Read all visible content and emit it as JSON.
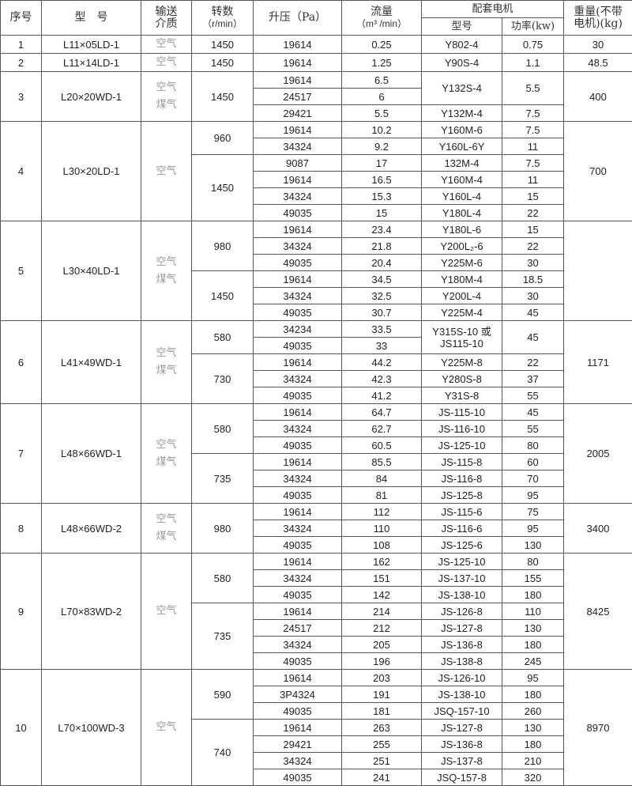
{
  "header": {
    "no": "序号",
    "model": "型　号",
    "medium_1": "输送",
    "medium_2": "介质",
    "speed_1": "转数",
    "speed_2": "（r/min）",
    "pressure": "升压（Pa）",
    "flow_1": "流量",
    "flow_2": "（m³ /min）",
    "motor_group": "配套电机",
    "motor_model": "型号",
    "motor_power": "功率(kw)",
    "weight_1": "重量(不带",
    "weight_2": "电机)(kg)"
  },
  "groups": [
    {
      "no": "1",
      "model": "L11×05LD-1",
      "medium": [
        "空气"
      ],
      "weight": "30",
      "speeds": [
        {
          "rpm": "1450",
          "rows": [
            {
              "pressure": "19614",
              "flow": "0.25",
              "motor": "Y802-4",
              "power": "0.75"
            }
          ]
        }
      ]
    },
    {
      "no": "2",
      "model": "L11×14LD-1",
      "medium": [
        "空气"
      ],
      "weight": "48.5",
      "speeds": [
        {
          "rpm": "1450",
          "rows": [
            {
              "pressure": "19614",
              "flow": "1.25",
              "motor": "Y90S-4",
              "power": "1.1"
            }
          ]
        }
      ]
    },
    {
      "no": "3",
      "model": "L20×20WD-1",
      "medium": [
        "空气",
        "煤气"
      ],
      "weight": "400",
      "speeds": [
        {
          "rpm": "1450",
          "rows": [
            {
              "pressure": "19614",
              "flow": "6.5",
              "motor": "Y132S-4",
              "power": "5.5",
              "merged_rows": 2
            },
            {
              "pressure": "24517",
              "flow": "6"
            },
            {
              "pressure": "29421",
              "flow": "5.5",
              "motor": "Y132M-4",
              "power": "7.5"
            }
          ]
        }
      ]
    },
    {
      "no": "4",
      "model": "L30×20LD-1",
      "medium": [
        "空气"
      ],
      "weight": "700",
      "speeds": [
        {
          "rpm": "960",
          "rows": [
            {
              "pressure": "19614",
              "flow": "10.2",
              "motor": "Y160M-6",
              "power": "7.5"
            },
            {
              "pressure": "34324",
              "flow": "9.2",
              "motor": "Y160L-6Y",
              "power": "11"
            }
          ]
        },
        {
          "rpm": "1450",
          "rows": [
            {
              "pressure": "9087",
              "flow": "17",
              "motor": "132M-4",
              "power": "7.5"
            },
            {
              "pressure": "19614",
              "flow": "16.5",
              "motor": "Y160M-4",
              "power": "11"
            },
            {
              "pressure": "34324",
              "flow": "15.3",
              "motor": "Y160L-4",
              "power": "15"
            },
            {
              "pressure": "49035",
              "flow": "15",
              "motor": "Y180L-4",
              "power": "22"
            }
          ]
        }
      ]
    },
    {
      "no": "5",
      "model": "L30×40LD-1",
      "medium": [
        "空气",
        "煤气"
      ],
      "weight": "",
      "speeds": [
        {
          "rpm": "980",
          "rows": [
            {
              "pressure": "19614",
              "flow": "23.4",
              "motor": "Y180L-6",
              "power": "15"
            },
            {
              "pressure": "34324",
              "flow": "21.8",
              "motor": "Y200L₂-6",
              "power": "22"
            },
            {
              "pressure": "49035",
              "flow": "20.4",
              "motor": "Y225M-6",
              "power": "30"
            }
          ]
        },
        {
          "rpm": "1450",
          "rows": [
            {
              "pressure": "19614",
              "flow": "34.5",
              "motor": "Y180M-4",
              "power": "18.5"
            },
            {
              "pressure": "34324",
              "flow": "32.5",
              "motor": "Y200L-4",
              "power": "30"
            },
            {
              "pressure": "49035",
              "flow": "30.7",
              "motor": "Y225M-4",
              "power": "45"
            }
          ]
        }
      ]
    },
    {
      "no": "6",
      "model": "L41×49WD-1",
      "medium": [
        "空气",
        "煤气"
      ],
      "weight": "1171",
      "speeds": [
        {
          "rpm": "580",
          "rows": [
            {
              "pressure": "34234",
              "flow": "33.5",
              "motor": "Y315S-10 或 JS115-10",
              "power": "45",
              "merged_rows": 2
            },
            {
              "pressure": "49035",
              "flow": "33"
            }
          ]
        },
        {
          "rpm": "730",
          "rows": [
            {
              "pressure": "19614",
              "flow": "44.2",
              "motor": "Y225M-8",
              "power": "22"
            },
            {
              "pressure": "34324",
              "flow": "42.3",
              "motor": "Y280S-8",
              "power": "37"
            },
            {
              "pressure": "49035",
              "flow": "41.2",
              "motor": "Y31S-8",
              "power": "55"
            }
          ]
        }
      ]
    },
    {
      "no": "7",
      "model": "L48×66WD-1",
      "medium": [
        "空气",
        "煤气"
      ],
      "weight": "2005",
      "speeds": [
        {
          "rpm": "580",
          "rows": [
            {
              "pressure": "19614",
              "flow": "64.7",
              "motor": "JS-115-10",
              "power": "45"
            },
            {
              "pressure": "34324",
              "flow": "62.7",
              "motor": "JS-116-10",
              "power": "55"
            },
            {
              "pressure": "49035",
              "flow": "60.5",
              "motor": "JS-125-10",
              "power": "80"
            }
          ]
        },
        {
          "rpm": "735",
          "rows": [
            {
              "pressure": "19614",
              "flow": "85.5",
              "motor": "JS-115-8",
              "power": "60"
            },
            {
              "pressure": "34324",
              "flow": "84",
              "motor": "JS-116-8",
              "power": "70"
            },
            {
              "pressure": "49035",
              "flow": "81",
              "motor": "JS-125-8",
              "power": "95"
            }
          ]
        }
      ]
    },
    {
      "no": "8",
      "model": "L48×66WD-2",
      "medium": [
        "空气",
        "煤气"
      ],
      "weight": "3400",
      "speeds": [
        {
          "rpm": "980",
          "rows": [
            {
              "pressure": "19614",
              "flow": "112",
              "motor": "JS-115-6",
              "power": "75"
            },
            {
              "pressure": "34324",
              "flow": "110",
              "motor": "JS-116-6",
              "power": "95"
            },
            {
              "pressure": "49035",
              "flow": "108",
              "motor": "JS-125-6",
              "power": "130"
            }
          ]
        }
      ]
    },
    {
      "no": "9",
      "model": "L70×83WD-2",
      "medium": [
        "空气"
      ],
      "weight": "8425",
      "speeds": [
        {
          "rpm": "580",
          "rows": [
            {
              "pressure": "19614",
              "flow": "162",
              "motor": "JS-125-10",
              "power": "80"
            },
            {
              "pressure": "34324",
              "flow": "151",
              "motor": "JS-137-10",
              "power": "155"
            },
            {
              "pressure": "49035",
              "flow": "142",
              "motor": "JS-138-10",
              "power": "180"
            }
          ]
        },
        {
          "rpm": "735",
          "rows": [
            {
              "pressure": "19614",
              "flow": "214",
              "motor": "JS-126-8",
              "power": "110"
            },
            {
              "pressure": "24517",
              "flow": "212",
              "motor": "JS-127-8",
              "power": "130"
            },
            {
              "pressure": "34324",
              "flow": "205",
              "motor": "JS-136-8",
              "power": "180"
            },
            {
              "pressure": "49035",
              "flow": "196",
              "motor": "JS-138-8",
              "power": "245"
            }
          ]
        }
      ]
    },
    {
      "no": "10",
      "model": "L70×100WD-3",
      "medium": [
        "空气"
      ],
      "weight": "8970",
      "speeds": [
        {
          "rpm": "590",
          "rows": [
            {
              "pressure": "19614",
              "flow": "203",
              "motor": "JS-126-10",
              "power": "95"
            },
            {
              "pressure": "3P4324",
              "flow": "191",
              "motor": "JS-138-10",
              "power": "180"
            },
            {
              "pressure": "49035",
              "flow": "181",
              "motor": "JSQ-157-10",
              "power": "260"
            }
          ]
        },
        {
          "rpm": "740",
          "rows": [
            {
              "pressure": "19614",
              "flow": "263",
              "motor": "JS-127-8",
              "power": "130"
            },
            {
              "pressure": "29421",
              "flow": "255",
              "motor": "JS-136-8",
              "power": "180"
            },
            {
              "pressure": "34324",
              "flow": "251",
              "motor": "JS-137-8",
              "power": "210"
            },
            {
              "pressure": "49035",
              "flow": "241",
              "motor": "JSQ-157-8",
              "power": "320"
            }
          ]
        }
      ]
    }
  ]
}
